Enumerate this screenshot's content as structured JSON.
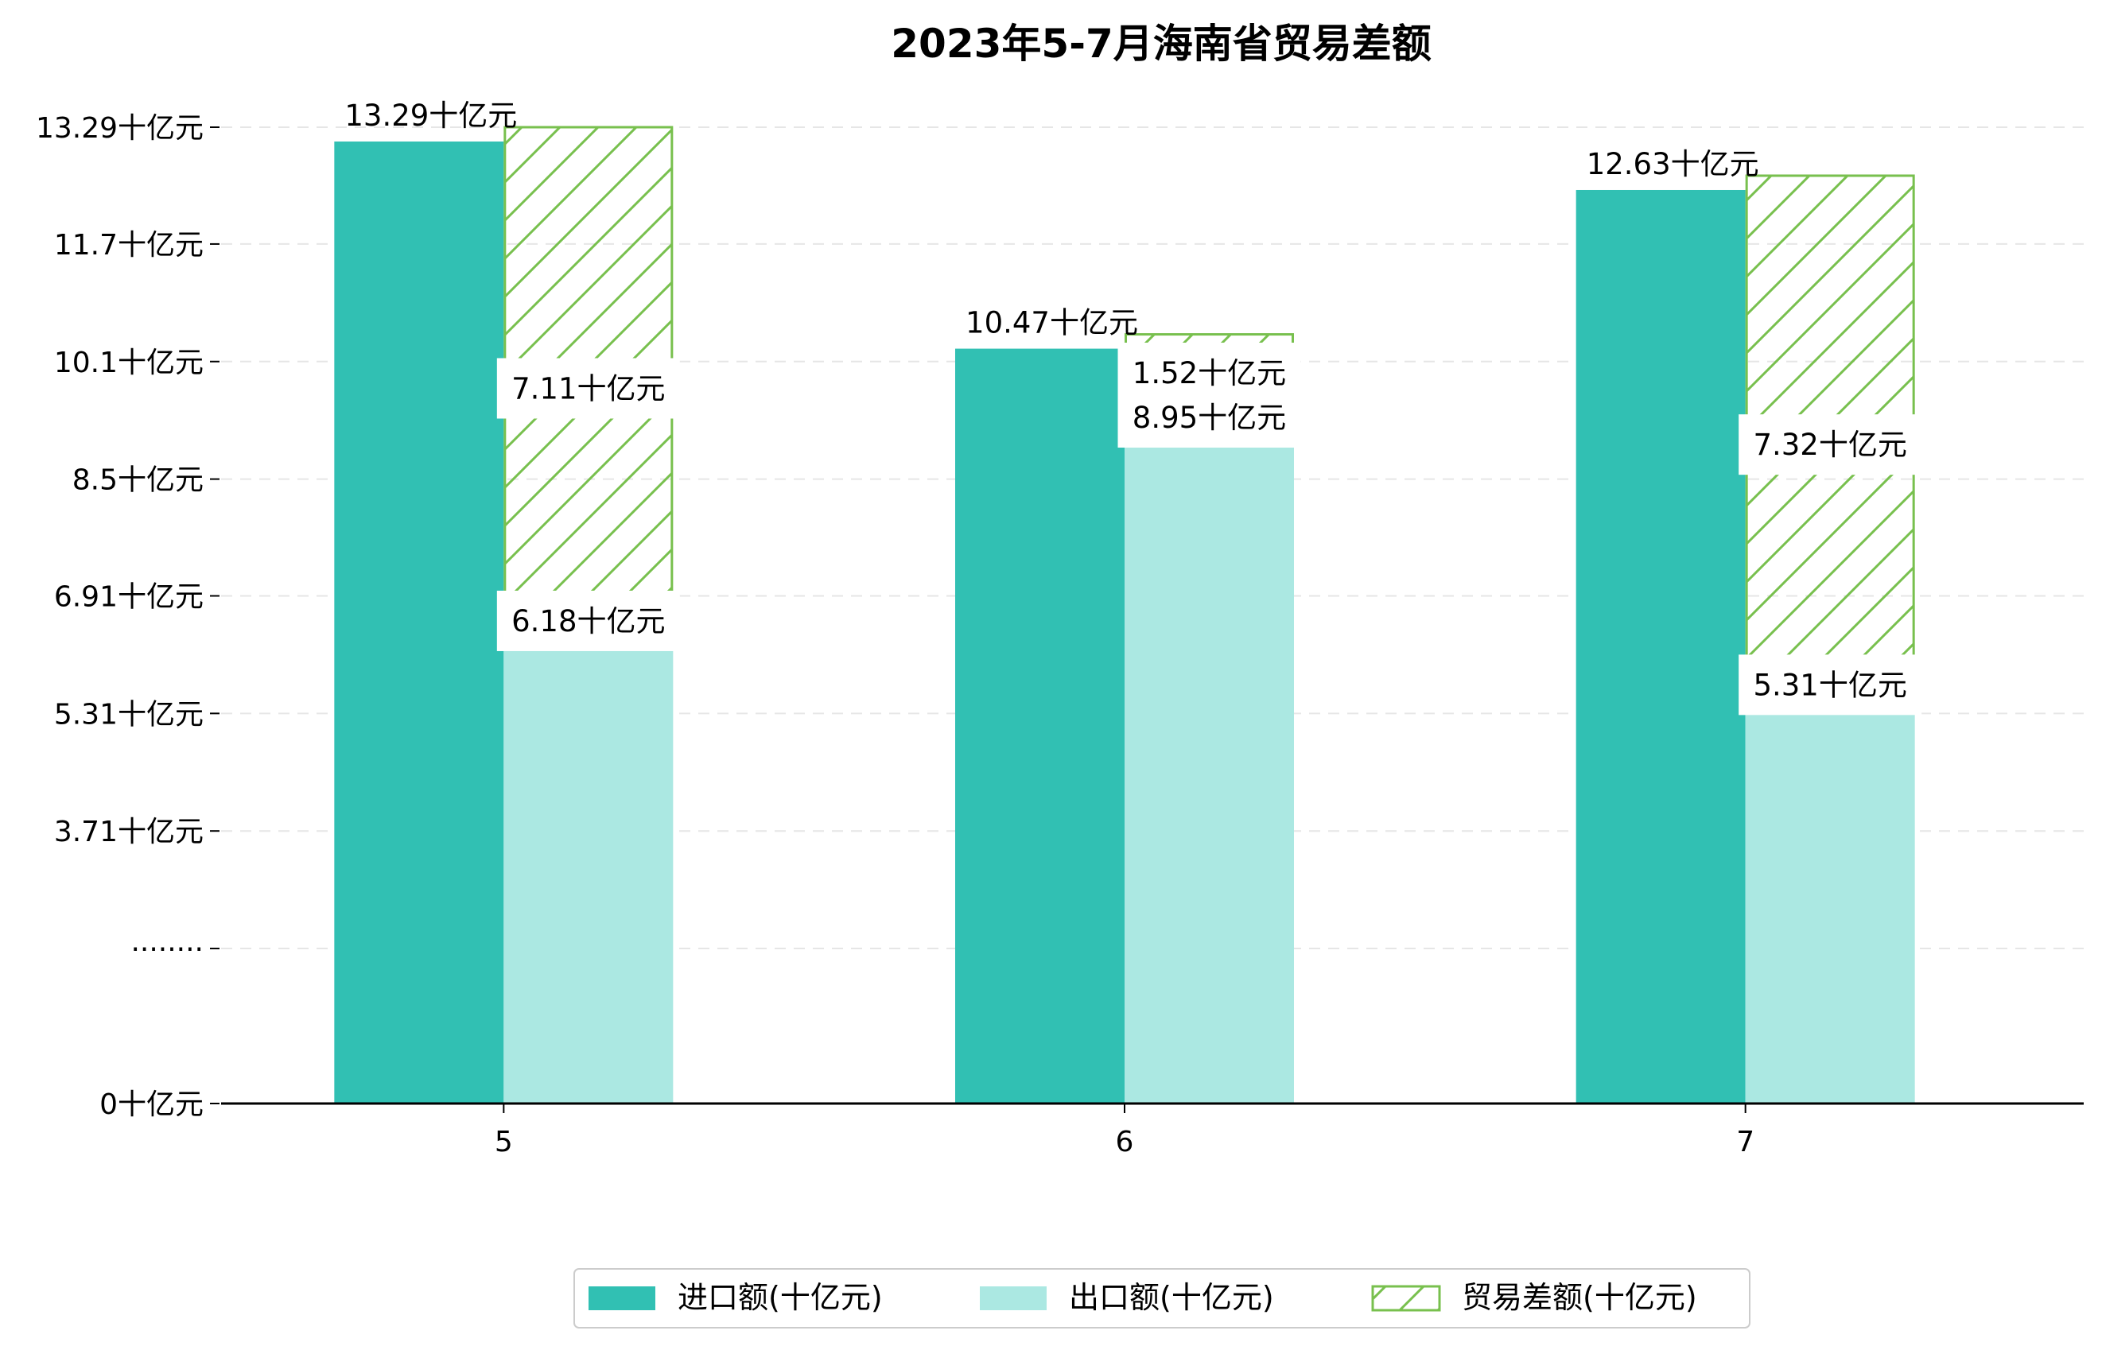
{
  "chart_data": {
    "type": "bar",
    "title": "2023年5-7月海南省贸易差额",
    "categories": [
      "5",
      "6",
      "7"
    ],
    "unit": "十亿元",
    "series": [
      {
        "name": "进口额(十亿元)",
        "key": "import",
        "values": [
          13.29,
          10.47,
          12.63
        ],
        "color": "#31c0b3"
      },
      {
        "name": "出口额(十亿元)",
        "key": "export",
        "values": [
          6.18,
          8.95,
          5.31
        ],
        "color": "#abe8e2"
      },
      {
        "name": "贸易差额(十亿元)",
        "key": "balance",
        "values": [
          7.11,
          1.52,
          7.32
        ],
        "color": "#78c04e",
        "hatch": true,
        "stacked_on": "export"
      }
    ],
    "data_labels": {
      "import": [
        "13.29十亿元",
        "10.47十亿元",
        "12.63十亿元"
      ],
      "export": [
        "6.18十亿元",
        "8.95十亿元",
        "5.31十亿元"
      ],
      "balance": [
        "7.11十亿元",
        "1.52十亿元",
        "7.32十亿元"
      ]
    },
    "y_ticks": [
      {
        "value": 0,
        "label": "0十亿元"
      },
      {
        "value": 2.11,
        "label": "········"
      },
      {
        "value": 3.71,
        "label": "3.71十亿元"
      },
      {
        "value": 5.31,
        "label": "5.31十亿元"
      },
      {
        "value": 6.91,
        "label": "6.91十亿元"
      },
      {
        "value": 8.5,
        "label": "8.5十亿元"
      },
      {
        "value": 10.1,
        "label": "10.1十亿元"
      },
      {
        "value": 11.7,
        "label": "11.7十亿元"
      },
      {
        "value": 13.29,
        "label": "13.29十亿元"
      }
    ],
    "ylim": [
      0,
      13.29
    ],
    "xlabel": "",
    "ylabel": "",
    "grid": true,
    "legend_position": "bottom-center"
  }
}
